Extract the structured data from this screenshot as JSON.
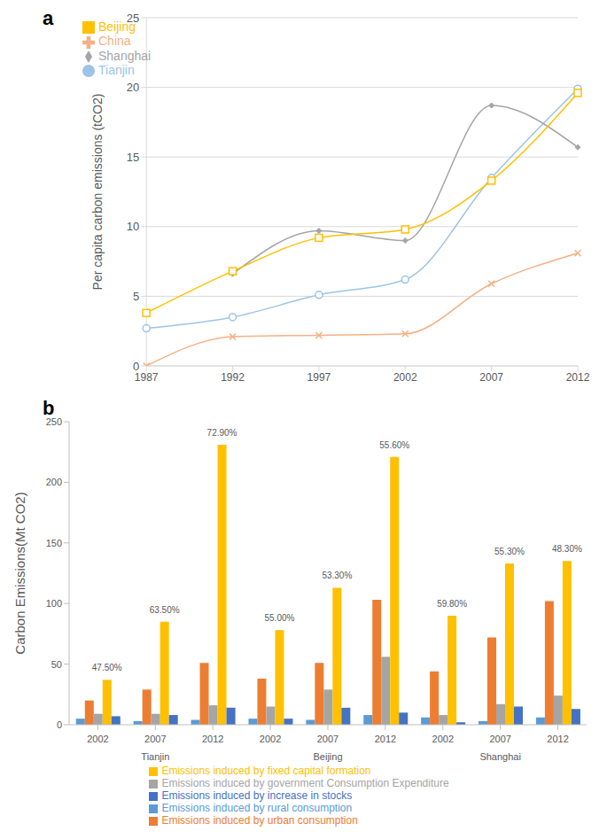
{
  "chart_data": [
    {
      "type": "line",
      "title": "a",
      "categories": [
        "1987",
        "1992",
        "1997",
        "2002",
        "2007",
        "2012"
      ],
      "y_label": "Per capita carbon emissions (tCO2)",
      "series": [
        {
          "name": "Tianjin",
          "color": "#9dc3e6",
          "marker": "circle",
          "values": [
            2.7,
            3.5,
            5.1,
            6.2,
            13.5,
            19.9
          ]
        },
        {
          "name": "Shanghai",
          "color": "#a5a5a5",
          "marker": "diamond",
          "values": [
            null,
            6.6,
            9.7,
            9.0,
            18.7,
            15.7
          ]
        },
        {
          "name": "Beijing",
          "color": "#ffc000",
          "marker": "square",
          "values": [
            3.8,
            6.8,
            9.2,
            9.8,
            13.3,
            19.6
          ]
        },
        {
          "name": "China",
          "color": "#f4b183",
          "marker": "x",
          "values": [
            0,
            2.1,
            2.2,
            2.3,
            5.9,
            8.1
          ]
        }
      ],
      "ylim": [
        0,
        25
      ],
      "yticks": [
        0,
        5,
        10,
        15,
        20,
        25
      ],
      "grid": true,
      "legend": "upper left"
    },
    {
      "type": "bar",
      "title": "b",
      "categories": [
        "2002",
        "2007",
        "2012",
        "2002",
        "2007",
        "2012",
        "2002",
        "2007",
        "2012"
      ],
      "groups": [
        "Tianjin",
        "Beijing",
        "Shanghai"
      ],
      "y_label": "Carbon Emissions(Mt CO2)",
      "series": [
        {
          "name": "Emissions induced by rural consumption",
          "color": "#5b9bd5",
          "values": [
            5,
            3,
            4,
            5,
            4,
            8,
            6,
            3,
            6
          ]
        },
        {
          "name": "Emissions induced by urban consumption",
          "color": "#ed7d31",
          "values": [
            20,
            29,
            51,
            38,
            51,
            103,
            44,
            72,
            102
          ]
        },
        {
          "name": "Emissions induced by government Consumption Expenditure",
          "color": "#a5a5a5",
          "values": [
            9,
            9,
            16,
            15,
            29,
            56,
            8,
            17,
            24
          ]
        },
        {
          "name": "Emissions induced by fixed capital formation",
          "color": "#ffc000",
          "values": [
            37,
            85,
            231,
            78,
            113,
            221,
            90,
            133,
            135
          ]
        },
        {
          "name": "Emissions induced by increase in stocks",
          "color": "#4472c4",
          "values": [
            7,
            8,
            14,
            5,
            14,
            10,
            2,
            15,
            13
          ]
        }
      ],
      "annotations": [
        "47.50%",
        "63.50%",
        "72.90%",
        "55.00%",
        "53.30%",
        "55.60%",
        "59.80%",
        "55.30%",
        "48.30%"
      ],
      "ylim": [
        0,
        250
      ],
      "yticks": [
        0,
        50,
        100,
        150,
        200,
        250
      ],
      "grid": false,
      "legend": "bottom"
    }
  ]
}
